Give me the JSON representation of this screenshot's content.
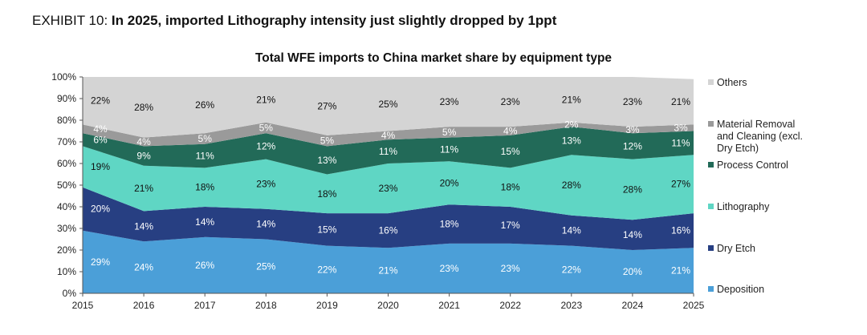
{
  "exhibit": {
    "prefix": "EXHIBIT 10: ",
    "headline": "In 2025, imported Lithography intensity just slightly dropped by 1ppt"
  },
  "chart_data": {
    "type": "area",
    "stacked": true,
    "title": "Total WFE imports to China market share by equipment type",
    "xlabel": "",
    "ylabel": "",
    "x": [
      2015,
      2016,
      2017,
      2018,
      2019,
      2020,
      2021,
      2022,
      2023,
      2024,
      2025
    ],
    "y_ticks": [
      "0%",
      "10%",
      "20%",
      "30%",
      "40%",
      "50%",
      "60%",
      "70%",
      "80%",
      "90%",
      "100%"
    ],
    "ylim": [
      0,
      100
    ],
    "legend_position": "right",
    "series": [
      {
        "name": "Deposition",
        "color": "#4b9fd8",
        "label_color": "#ffffff",
        "values": [
          29,
          24,
          26,
          25,
          22,
          21,
          23,
          23,
          22,
          20,
          21
        ],
        "labels": [
          "29%",
          "24%",
          "26%",
          "25%",
          "22%",
          "21%",
          "23%",
          "23%",
          "22%",
          "20%",
          "21%"
        ]
      },
      {
        "name": "Dry Etch",
        "color": "#273f82",
        "label_color": "#ffffff",
        "values": [
          20,
          14,
          14,
          14,
          15,
          16,
          18,
          17,
          14,
          14,
          16
        ],
        "labels": [
          "20%",
          "14%",
          "14%",
          "14%",
          "15%",
          "16%",
          "18%",
          "17%",
          "14%",
          "14%",
          "16%"
        ]
      },
      {
        "name": "Lithography",
        "color": "#5fd6c4",
        "label_color": "#111111",
        "values": [
          19,
          21,
          18,
          23,
          18,
          23,
          20,
          18,
          28,
          28,
          27
        ],
        "labels": [
          "19%",
          "21%",
          "18%",
          "23%",
          "18%",
          "23%",
          "20%",
          "18%",
          "28%",
          "28%",
          "27%"
        ]
      },
      {
        "name": "Process Control",
        "color": "#226a58",
        "label_color": "#ffffff",
        "values": [
          6,
          9,
          11,
          12,
          13,
          11,
          11,
          15,
          13,
          12,
          11
        ],
        "labels": [
          "6%",
          "9%",
          "11%",
          "12%",
          "13%",
          "11%",
          "11%",
          "15%",
          "13%",
          "12%",
          "11%"
        ]
      },
      {
        "name": "Material Removal and Cleaning (excl. Dry Etch)",
        "color": "#9a9a9a",
        "label_color": "#ffffff",
        "legend_lines": [
          "Material Removal",
          "and Cleaning (excl.",
          "Dry Etch)"
        ],
        "values": [
          4,
          4,
          5,
          5,
          5,
          4,
          5,
          4,
          2,
          3,
          3
        ],
        "labels": [
          "4%",
          "4%",
          "5%",
          "5%",
          "5%",
          "4%",
          "5%",
          "4%",
          "2%",
          "3%",
          "3%"
        ]
      },
      {
        "name": "Others",
        "color": "#d4d4d4",
        "label_color": "#111111",
        "values": [
          22,
          28,
          26,
          21,
          27,
          25,
          23,
          23,
          21,
          23,
          21
        ],
        "labels": [
          "22%",
          "28%",
          "26%",
          "21%",
          "27%",
          "25%",
          "23%",
          "23%",
          "21%",
          "23%",
          "21%"
        ]
      }
    ],
    "legend_order": [
      "Others",
      "Material Removal and Cleaning (excl. Dry Etch)",
      "Process Control",
      "Lithography",
      "Dry Etch",
      "Deposition"
    ]
  }
}
